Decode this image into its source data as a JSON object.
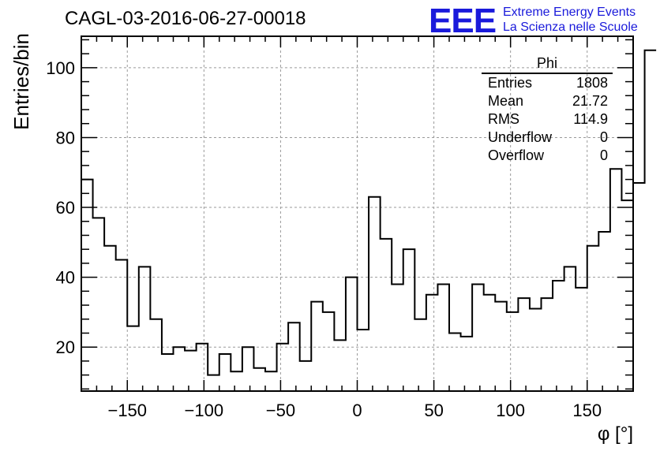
{
  "header": {
    "title": "CAGL-03-2016-06-27-00018",
    "logo_text": "EEE",
    "logo_line1": "Extreme Energy Events",
    "logo_line2": "La Scienza nelle Scuole"
  },
  "stats": {
    "name": "Phi",
    "rows": [
      {
        "label": "Entries",
        "value": "1808"
      },
      {
        "label": "Mean",
        "value": "21.72"
      },
      {
        "label": "RMS",
        "value": "114.9"
      },
      {
        "label": "Underflow",
        "value": "0"
      },
      {
        "label": "Overflow",
        "value": "0"
      }
    ]
  },
  "colors": {
    "line": "#000000",
    "grid": "#9a9a9a",
    "logo": "#1a1adb"
  },
  "chart_data": {
    "type": "histogram",
    "title": "CAGL-03-2016-06-27-00018",
    "xlabel": "φ [°]",
    "ylabel": "Entries/bin",
    "xlim": [
      -180,
      180
    ],
    "ylim": [
      7.4,
      109
    ],
    "bin_width": 7.5,
    "x_ticks": [
      -150,
      -100,
      -50,
      0,
      50,
      100,
      150
    ],
    "x_tick_labels": [
      "−150",
      "−100",
      "−50",
      "0",
      "50",
      "100",
      "150"
    ],
    "y_ticks": [
      20,
      40,
      60,
      80,
      100
    ],
    "y_tick_labels": [
      "20",
      "40",
      "60",
      "80",
      "100"
    ],
    "grid": true,
    "values": [
      68,
      57,
      49,
      45,
      26,
      43,
      28,
      18,
      20,
      19,
      21,
      12,
      18,
      13,
      20,
      14,
      13,
      21,
      27,
      16,
      33,
      30,
      22,
      40,
      25,
      63,
      51,
      38,
      48,
      28,
      35,
      38,
      24,
      23,
      38,
      35,
      33,
      30,
      34,
      31,
      34,
      39,
      43,
      37,
      49,
      53,
      71,
      62,
      67,
      105
    ]
  }
}
